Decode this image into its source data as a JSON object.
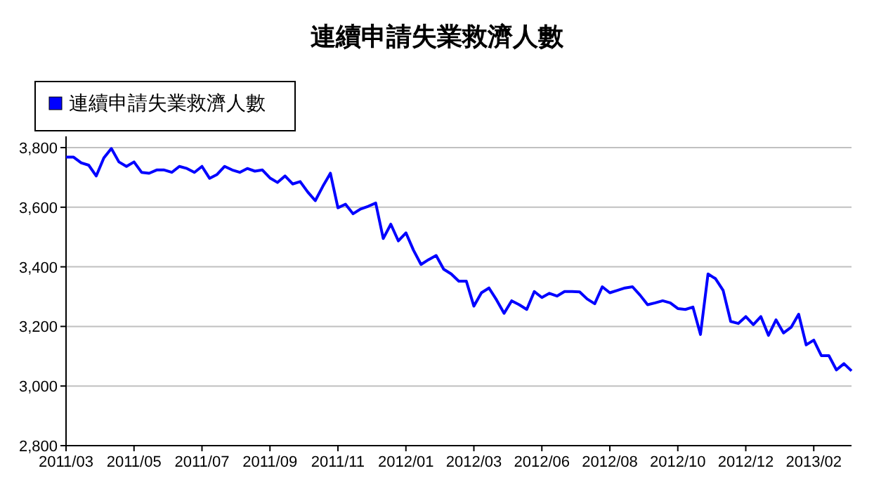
{
  "chart_data": {
    "type": "line",
    "title": "連續申請失業救濟人數",
    "categories": [
      "2011/03",
      null,
      null,
      null,
      null,
      null,
      null,
      null,
      null,
      "2011/05",
      null,
      null,
      null,
      null,
      null,
      null,
      null,
      null,
      "2011/07",
      null,
      null,
      null,
      null,
      null,
      null,
      null,
      null,
      "2011/09",
      null,
      null,
      null,
      null,
      null,
      null,
      null,
      null,
      "2011/11",
      null,
      null,
      null,
      null,
      null,
      null,
      null,
      null,
      "2012/01",
      null,
      null,
      null,
      null,
      null,
      null,
      null,
      null,
      "2012/03",
      null,
      null,
      null,
      null,
      null,
      null,
      null,
      null,
      "2012/06",
      null,
      null,
      null,
      null,
      null,
      null,
      null,
      null,
      "2012/08",
      null,
      null,
      null,
      null,
      null,
      null,
      null,
      null,
      "2012/10",
      null,
      null,
      null,
      null,
      null,
      null,
      null,
      null,
      "2012/12",
      null,
      null,
      null,
      null,
      null,
      null,
      null,
      null,
      "2013/02",
      null,
      null,
      null,
      null,
      null
    ],
    "series": [
      {
        "name": "連續申請失業救濟人數",
        "color": "#0000ff",
        "values": [
          3768,
          3768,
          3749,
          3741,
          3705,
          3765,
          3797,
          3752,
          3737,
          3752,
          3717,
          3714,
          3725,
          3725,
          3717,
          3737,
          3730,
          3717,
          3737,
          3697,
          3710,
          3737,
          3725,
          3717,
          3730,
          3721,
          3725,
          3698,
          3683,
          3705,
          3678,
          3686,
          3651,
          3622,
          3670,
          3714,
          3598,
          3610,
          3578,
          3594,
          3603,
          3614,
          3495,
          3543,
          3487,
          3514,
          3456,
          3408,
          3424,
          3438,
          3392,
          3376,
          3352,
          3352,
          3268,
          3313,
          3329,
          3289,
          3244,
          3286,
          3273,
          3257,
          3317,
          3297,
          3311,
          3302,
          3317,
          3317,
          3316,
          3292,
          3276,
          3333,
          3313,
          3321,
          3329,
          3333,
          3305,
          3273,
          3279,
          3286,
          3279,
          3260,
          3257,
          3265,
          3173,
          3376,
          3360,
          3321,
          3217,
          3210,
          3233,
          3206,
          3233,
          3170,
          3222,
          3178,
          3197,
          3241,
          3138,
          3154,
          3102,
          3102,
          3054,
          3075,
          3051
        ]
      }
    ],
    "ylim": [
      2800,
      3800
    ],
    "yticks": [
      {
        "value": 2800,
        "label": "2,800"
      },
      {
        "value": 3000,
        "label": "3,000"
      },
      {
        "value": 3200,
        "label": "3,200"
      },
      {
        "value": 3400,
        "label": "3,400"
      },
      {
        "value": 3600,
        "label": "3,600"
      },
      {
        "value": 3800,
        "label": "3,800"
      }
    ],
    "grid": "y",
    "legend": "top left",
    "marker": "none",
    "line_style": "solid"
  }
}
